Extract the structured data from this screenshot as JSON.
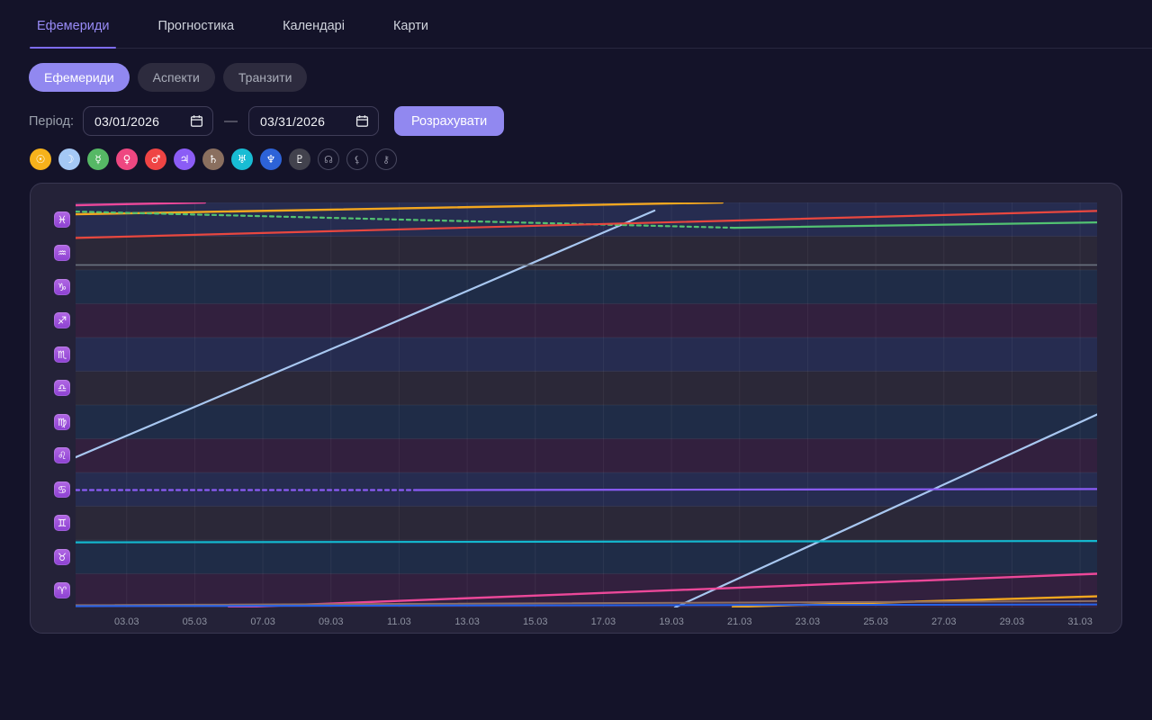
{
  "tabs": {
    "items": [
      {
        "id": "ephemeris",
        "label": "Ефемериди",
        "active": true
      },
      {
        "id": "prognostics",
        "label": "Прогностика",
        "active": false
      },
      {
        "id": "calendars",
        "label": "Календарі",
        "active": false
      },
      {
        "id": "charts",
        "label": "Карти",
        "active": false
      }
    ]
  },
  "filters": {
    "items": [
      {
        "id": "ephemeris",
        "label": "Ефемериди",
        "active": true
      },
      {
        "id": "aspects",
        "label": "Аспекти",
        "active": false
      },
      {
        "id": "transits",
        "label": "Транзити",
        "active": false
      }
    ]
  },
  "period": {
    "label": "Період:",
    "from": "03/01/2026",
    "to": "03/31/2026",
    "separator": "—",
    "submit_label": "Розрахувати"
  },
  "planet_toggles": [
    {
      "id": "sun",
      "symbol": "☉",
      "color": "#f6b21b",
      "active": true
    },
    {
      "id": "moon",
      "symbol": "☽",
      "color": "#a4c8f5",
      "active": true
    },
    {
      "id": "mercury",
      "symbol": "☿",
      "color": "#56b865",
      "active": true
    },
    {
      "id": "venus",
      "symbol": "♀",
      "color": "#ee4781",
      "active": true
    },
    {
      "id": "mars",
      "symbol": "♂",
      "color": "#ef4444",
      "active": true
    },
    {
      "id": "jupiter",
      "symbol": "♃",
      "color": "#8b5cf6",
      "active": true
    },
    {
      "id": "saturn",
      "symbol": "♄",
      "color": "#8a6f5f",
      "active": true
    },
    {
      "id": "uranus",
      "symbol": "♅",
      "color": "#18bcd4",
      "active": true
    },
    {
      "id": "neptune",
      "symbol": "♆",
      "color": "#2d63d8",
      "active": true
    },
    {
      "id": "pluto",
      "symbol": "♇",
      "color": "#42424d",
      "active": true
    },
    {
      "id": "north-node",
      "symbol": "☊",
      "color": null,
      "active": false
    },
    {
      "id": "lilith",
      "symbol": "⚸",
      "color": null,
      "active": false
    },
    {
      "id": "chiron",
      "symbol": "⚷",
      "color": null,
      "active": false
    }
  ],
  "chart_data": {
    "type": "line",
    "title": "Ephemeris — planet positions by zodiac sign, March 2026",
    "x_unit": "day of March 2026",
    "x_range_days": [
      1.5,
      31.5
    ],
    "x_ticks": [
      {
        "day": 3,
        "label": "03.03"
      },
      {
        "day": 5,
        "label": "05.03"
      },
      {
        "day": 7,
        "label": "07.03"
      },
      {
        "day": 9,
        "label": "09.03"
      },
      {
        "day": 11,
        "label": "11.03"
      },
      {
        "day": 13,
        "label": "13.03"
      },
      {
        "day": 15,
        "label": "15.03"
      },
      {
        "day": 17,
        "label": "17.03"
      },
      {
        "day": 19,
        "label": "19.03"
      },
      {
        "day": 21,
        "label": "21.03"
      },
      {
        "day": 23,
        "label": "23.03"
      },
      {
        "day": 25,
        "label": "25.03"
      },
      {
        "day": 27,
        "label": "27.03"
      },
      {
        "day": 29,
        "label": "29.03"
      },
      {
        "day": 31,
        "label": "31.03"
      }
    ],
    "y_unit": "zodiac position, 0 = 0° Aries, 1 sign = 1 unit, 12 = 30° Pisces",
    "y_range": [
      0,
      12
    ],
    "bands_top_to_bottom": [
      {
        "sign": "pisces",
        "glyph": "♓",
        "element": "water"
      },
      {
        "sign": "aquarius",
        "glyph": "♒",
        "element": "air"
      },
      {
        "sign": "capricorn",
        "glyph": "♑",
        "element": "earth"
      },
      {
        "sign": "sagittarius",
        "glyph": "♐",
        "element": "fire"
      },
      {
        "sign": "scorpio",
        "glyph": "♏",
        "element": "water"
      },
      {
        "sign": "libra",
        "glyph": "♎",
        "element": "air"
      },
      {
        "sign": "virgo",
        "glyph": "♍",
        "element": "earth"
      },
      {
        "sign": "leo",
        "glyph": "♌",
        "element": "fire"
      },
      {
        "sign": "cancer",
        "glyph": "♋",
        "element": "water"
      },
      {
        "sign": "gemini",
        "glyph": "♊",
        "element": "air"
      },
      {
        "sign": "taurus",
        "glyph": "♉",
        "element": "earth"
      },
      {
        "sign": "aries",
        "glyph": "♈",
        "element": "fire"
      }
    ],
    "band_colors": {
      "water": "#262c50",
      "air": "#2b2838",
      "earth": "#1f2c47",
      "fire": "#32203e"
    },
    "grid_color": "rgba(255,255,255,0.055)",
    "series": [
      {
        "name": "sun",
        "color": "#f3a71f",
        "width": 2.4,
        "segments": [
          {
            "points": [
              [
                1.5,
                11.65
              ],
              [
                20.5,
                12.0
              ]
            ]
          },
          {
            "points": [
              [
                20.8,
                0.02
              ],
              [
                31.5,
                0.33
              ]
            ]
          }
        ]
      },
      {
        "name": "moon",
        "color": "#a8c7f0",
        "width": 2.2,
        "segments": [
          {
            "points": [
              [
                1.5,
                4.45
              ],
              [
                10.0,
                8.08
              ],
              [
                18.5,
                11.76
              ]
            ]
          },
          {
            "points": [
              [
                19.1,
                0.0
              ],
              [
                31.5,
                5.72
              ]
            ]
          }
        ]
      },
      {
        "name": "mercury",
        "color": "#52c272",
        "width": 2.2,
        "segments": [
          {
            "points": [
              [
                1.5,
                11.73
              ],
              [
                20.85,
                11.25
              ]
            ],
            "dashed": true
          },
          {
            "points": [
              [
                20.85,
                11.25
              ],
              [
                31.5,
                11.41
              ]
            ]
          }
        ]
      },
      {
        "name": "venus",
        "color": "#ec4899",
        "width": 2.4,
        "segments": [
          {
            "points": [
              [
                1.5,
                11.92
              ],
              [
                5.3,
                12.0
              ]
            ]
          },
          {
            "points": [
              [
                6.0,
                0.0
              ],
              [
                31.5,
                1.0
              ]
            ]
          }
        ]
      },
      {
        "name": "mars",
        "color": "#e8473f",
        "width": 2.2,
        "segments": [
          {
            "points": [
              [
                1.5,
                10.95
              ],
              [
                31.5,
                11.75
              ]
            ]
          }
        ]
      },
      {
        "name": "jupiter",
        "color": "#8b5cf6",
        "width": 2.2,
        "segments": [
          {
            "points": [
              [
                1.5,
                3.48
              ],
              [
                11.5,
                3.48
              ]
            ],
            "dashed": true
          },
          {
            "points": [
              [
                11.5,
                3.48
              ],
              [
                31.5,
                3.51
              ]
            ]
          }
        ]
      },
      {
        "name": "saturn",
        "color": "#8d6e63",
        "width": 2,
        "segments": [
          {
            "points": [
              [
                1.5,
                0.07
              ],
              [
                31.5,
                0.19
              ]
            ]
          }
        ]
      },
      {
        "name": "uranus",
        "color": "#14b8cf",
        "width": 2.2,
        "segments": [
          {
            "points": [
              [
                1.5,
                1.93
              ],
              [
                31.5,
                1.97
              ]
            ]
          }
        ]
      },
      {
        "name": "neptune",
        "color": "#2563eb",
        "width": 2,
        "segments": [
          {
            "points": [
              [
                1.5,
                0.04
              ],
              [
                31.5,
                0.09
              ]
            ]
          }
        ]
      },
      {
        "name": "pluto",
        "color": "#6b7280",
        "width": 1.6,
        "segments": [
          {
            "points": [
              [
                1.5,
                10.15
              ],
              [
                31.5,
                10.15
              ]
            ]
          }
        ]
      }
    ]
  }
}
